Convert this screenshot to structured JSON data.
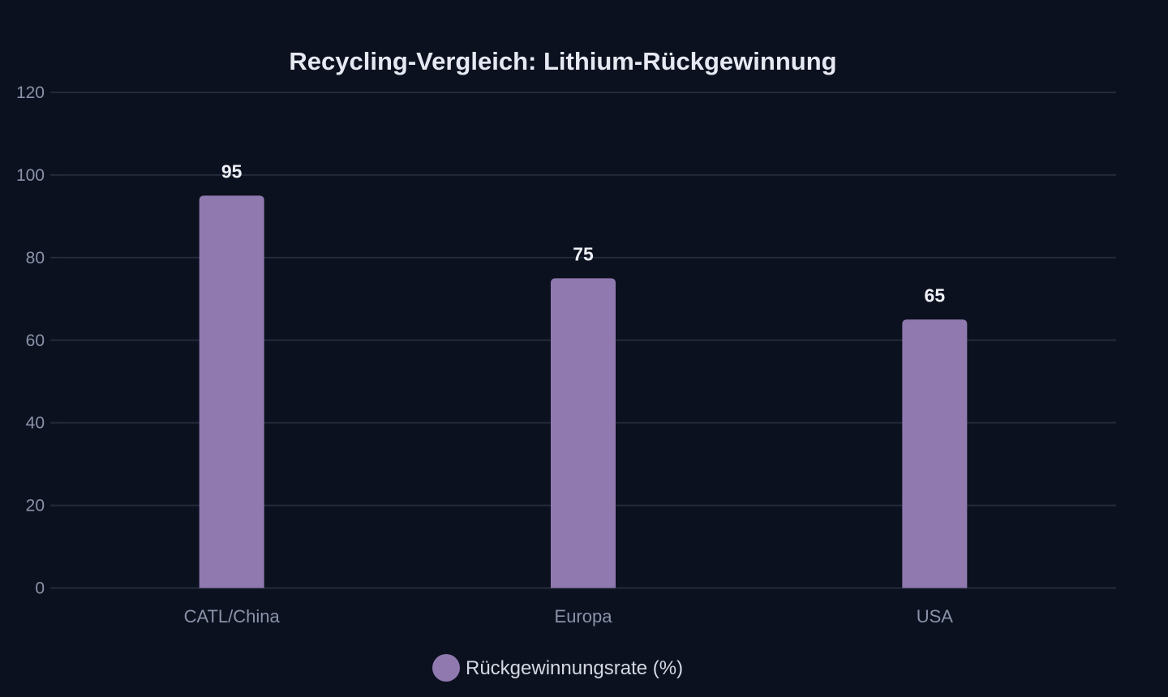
{
  "colors": {
    "background": "#0c1120",
    "grid": "#232a3a",
    "bar": "#8f79ae",
    "title": "#e6e9f2",
    "tick": "#8a93a8",
    "value_label": "#eef0f6",
    "legend_text": "#d4d8e2"
  },
  "chart_data": {
    "type": "bar",
    "title": "Recycling-Vergleich: Lithium-Rückgewinnung",
    "categories": [
      "CATL/China",
      "Europa",
      "USA"
    ],
    "series": [
      {
        "name": "Rückgewinnungsrate (%)",
        "values": [
          95,
          75,
          65
        ]
      }
    ],
    "data_labels": [
      "95",
      "75",
      "65"
    ],
    "ylim": [
      0,
      120
    ],
    "yticks": [
      0,
      20,
      40,
      60,
      80,
      100,
      120
    ],
    "ytick_labels": [
      "0",
      "20",
      "40",
      "60",
      "80",
      "100",
      "120"
    ],
    "xlabel": "",
    "ylabel": "",
    "grid": true,
    "legend_position": "bottom-center"
  }
}
